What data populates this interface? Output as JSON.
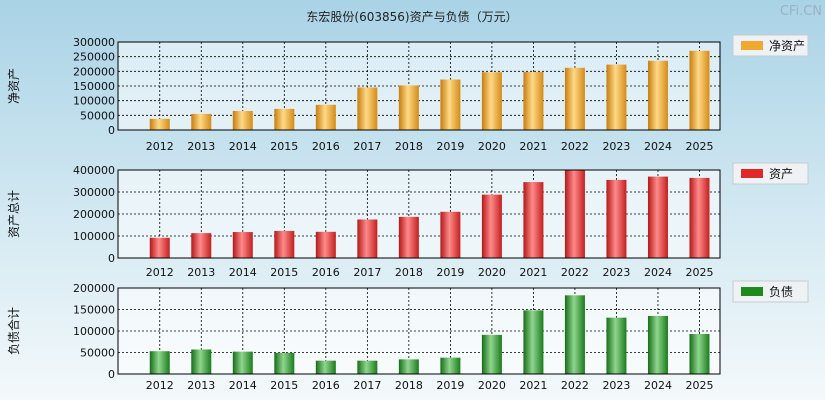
{
  "title": "东宏股份(603856)资产与负债（万元）",
  "brand": "CFi.CN",
  "chart_data": [
    {
      "type": "bar",
      "ylabel": "净资产",
      "legend": "净资产",
      "color": "#f0a830",
      "categories": [
        "2012",
        "2013",
        "2014",
        "2015",
        "2016",
        "2017",
        "2018",
        "2019",
        "2020",
        "2021",
        "2022",
        "2023",
        "2024",
        "2025"
      ],
      "values": [
        38000,
        55000,
        65000,
        72000,
        86000,
        145000,
        152000,
        172000,
        197000,
        198000,
        212000,
        223000,
        236000,
        270000
      ],
      "ylim": [
        0,
        300000
      ],
      "yticks": [
        "300000",
        "250000",
        "200000",
        "150000",
        "100000",
        "50000",
        "0"
      ]
    },
    {
      "type": "bar",
      "ylabel": "资产总计",
      "legend": "资产",
      "color": "#e02828",
      "categories": [
        "2012",
        "2013",
        "2014",
        "2015",
        "2016",
        "2017",
        "2018",
        "2019",
        "2020",
        "2021",
        "2022",
        "2023",
        "2024",
        "2025"
      ],
      "values": [
        92000,
        113000,
        118000,
        123000,
        119000,
        175000,
        187000,
        210000,
        288000,
        345000,
        398000,
        355000,
        370000,
        364000
      ],
      "ylim": [
        0,
        400000
      ],
      "yticks": [
        "400000",
        "300000",
        "200000",
        "100000",
        "0"
      ]
    },
    {
      "type": "bar",
      "ylabel": "负债合计",
      "legend": "负债",
      "color": "#1e8a1e",
      "categories": [
        "2012",
        "2013",
        "2014",
        "2015",
        "2016",
        "2017",
        "2018",
        "2019",
        "2020",
        "2021",
        "2022",
        "2023",
        "2024",
        "2025"
      ],
      "values": [
        53000,
        57000,
        52000,
        49000,
        31000,
        31000,
        34000,
        38000,
        91000,
        148000,
        183000,
        131000,
        135000,
        93000
      ],
      "ylim": [
        0,
        200000
      ],
      "yticks": [
        "200000",
        "150000",
        "100000",
        "50000",
        "0"
      ]
    }
  ]
}
